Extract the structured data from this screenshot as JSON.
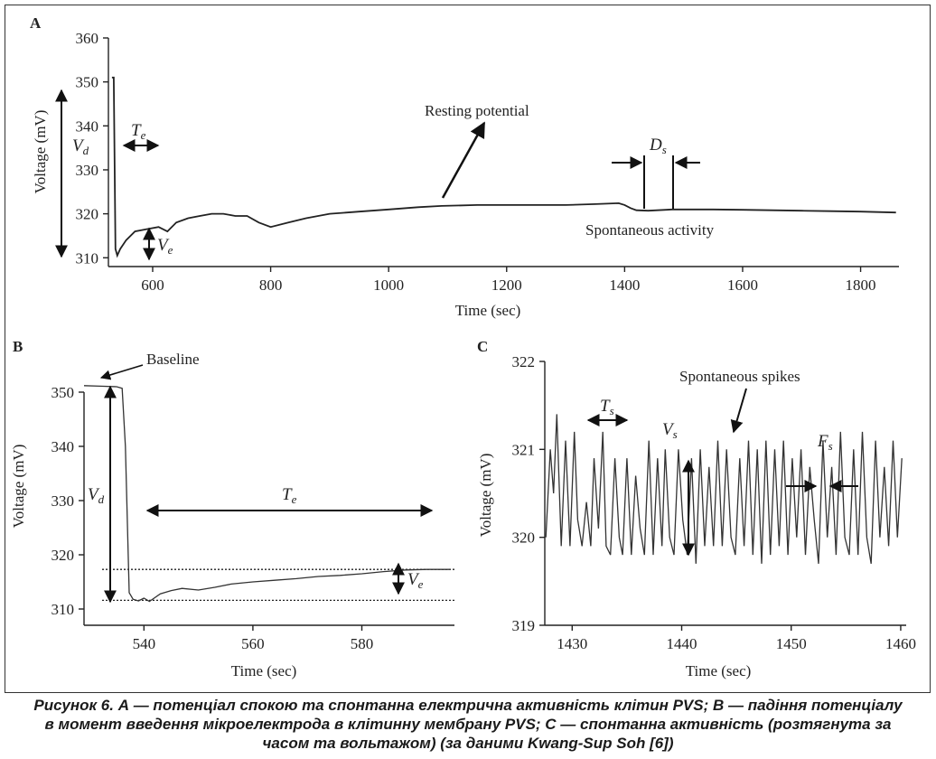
{
  "chart_data": [
    {
      "panel": "A",
      "type": "line",
      "xlabel": "Time (sec)",
      "ylabel": "Voltage (mV)",
      "xlim": [
        525,
        1865
      ],
      "ylim": [
        308,
        360
      ],
      "xticks": [
        600,
        800,
        1000,
        1200,
        1400,
        1600,
        1800
      ],
      "yticks": [
        310,
        320,
        330,
        340,
        350,
        360
      ],
      "series": [
        {
          "x": [
            531,
            534,
            537,
            540,
            545,
            555,
            570,
            590,
            610,
            625,
            640,
            660,
            680,
            700,
            720,
            740,
            760,
            780,
            800,
            830,
            860,
            900,
            950,
            1000,
            1050,
            1090,
            1150,
            1200,
            1250,
            1300,
            1350,
            1390,
            1400,
            1410,
            1420,
            1440,
            1470,
            1480,
            1500,
            1550,
            1600,
            1650,
            1700,
            1750,
            1800,
            1830,
            1860
          ],
          "y": [
            351,
            351,
            312,
            310.5,
            312,
            314,
            316,
            316.5,
            317,
            316,
            318,
            319,
            319.5,
            320,
            320,
            319.5,
            319.5,
            318,
            317,
            318,
            319,
            320,
            320.5,
            321,
            321.5,
            321.8,
            322,
            322,
            322,
            322,
            322.2,
            322.4,
            322,
            321.3,
            320.8,
            320.7,
            320.9,
            321,
            321,
            321,
            320.9,
            320.8,
            320.7,
            320.6,
            320.5,
            320.4,
            320.3
          ]
        }
      ],
      "annotations": {
        "resting": "Resting potential",
        "spontaneous": "Spontaneous activity",
        "te": "T",
        "te_sub": "e",
        "vd": "V",
        "vd_sub": "d",
        "ve": "V",
        "ve_sub": "e",
        "ds": "D",
        "ds_sub": "s"
      }
    },
    {
      "panel": "B",
      "type": "line",
      "xlabel": "Time (sec)",
      "ylabel": "Voltage (mV)",
      "xlim": [
        529,
        597
      ],
      "ylim": [
        307,
        354
      ],
      "xticks": [
        540,
        560,
        580
      ],
      "yticks": [
        310,
        320,
        330,
        340,
        350
      ],
      "series": [
        {
          "x": [
            529,
            532,
            535,
            536,
            536.6,
            537.3,
            538,
            539,
            540,
            541,
            543,
            545,
            547,
            550,
            553,
            556,
            560,
            564,
            568,
            572,
            576,
            580,
            584,
            588,
            592,
            596
          ],
          "y": [
            351.2,
            351.1,
            351,
            350.7,
            340,
            313,
            311.8,
            311.5,
            312,
            311.4,
            312.8,
            313.4,
            313.8,
            313.5,
            314,
            314.6,
            315,
            315.3,
            315.6,
            316,
            316.2,
            316.5,
            316.9,
            317.2,
            317.3,
            317.3
          ]
        }
      ],
      "reference_lines": [
        317.3,
        311.6
      ],
      "annotations": {
        "baseline": "Baseline",
        "vd": "V",
        "vd_sub": "d",
        "te": "T",
        "te_sub": "e",
        "ve": "V",
        "ve_sub": "e"
      }
    },
    {
      "panel": "C",
      "type": "line",
      "xlabel": "Time (sec)",
      "ylabel": "Voltage (mV)",
      "xlim": [
        1427.5,
        1460.5
      ],
      "ylim": [
        319,
        322
      ],
      "xticks": [
        1430,
        1440,
        1450,
        1460
      ],
      "yticks": [
        319,
        320,
        321,
        322
      ],
      "series": [
        {
          "x": [
            1427.6,
            1428.0,
            1428.3,
            1428.6,
            1429.0,
            1429.4,
            1429.8,
            1430.2,
            1430.5,
            1430.9,
            1431.3,
            1431.7,
            1432.0,
            1432.4,
            1432.8,
            1433.1,
            1433.5,
            1433.9,
            1434.3,
            1434.6,
            1435.0,
            1435.4,
            1435.8,
            1436.2,
            1436.6,
            1437.0,
            1437.4,
            1437.8,
            1438.2,
            1438.5,
            1438.9,
            1439.3,
            1439.7,
            1440.1,
            1440.5,
            1440.9,
            1441.3,
            1441.7,
            1442.1,
            1442.5,
            1442.9,
            1443.3,
            1443.7,
            1444.1,
            1444.5,
            1444.9,
            1445.3,
            1445.7,
            1446.1,
            1446.5,
            1446.9,
            1447.3,
            1447.7,
            1448.1,
            1448.5,
            1448.9,
            1449.3,
            1449.7,
            1450.1,
            1450.5,
            1450.9,
            1451.3,
            1451.7,
            1452.1,
            1452.5,
            1452.9,
            1453.3,
            1453.7,
            1454.1,
            1454.5,
            1454.9,
            1455.3,
            1455.7,
            1456.1,
            1456.5,
            1456.9,
            1457.3,
            1457.7,
            1458.1,
            1458.5,
            1458.9,
            1459.3,
            1459.7,
            1460.1
          ],
          "y": [
            320.0,
            321.0,
            320.5,
            321.4,
            319.9,
            321.1,
            319.9,
            321.2,
            320.2,
            319.9,
            320.4,
            319.9,
            320.9,
            320.1,
            321.2,
            319.9,
            319.8,
            320.9,
            320.0,
            319.8,
            320.9,
            319.8,
            320.7,
            320.1,
            319.8,
            321.1,
            319.8,
            320.9,
            319.9,
            321.0,
            320.0,
            319.8,
            321.0,
            320.2,
            319.8,
            320.9,
            319.7,
            321.0,
            319.9,
            320.8,
            319.9,
            321.1,
            319.9,
            321.0,
            320.0,
            319.8,
            320.9,
            319.9,
            321.1,
            319.8,
            321.0,
            319.7,
            321.1,
            319.8,
            321.0,
            319.9,
            321.1,
            319.8,
            320.9,
            320.0,
            321.0,
            319.8,
            320.8,
            320.2,
            319.7,
            321.1,
            320.0,
            320.8,
            319.8,
            321.2,
            320.0,
            319.8,
            321.0,
            319.8,
            321.2,
            320.0,
            319.7,
            321.1,
            320.0,
            320.8,
            319.9,
            321.1,
            320.0,
            320.9
          ]
        }
      ],
      "annotations": {
        "spikes": "Spontaneous spikes",
        "ts": "T",
        "ts_sub": "s",
        "vs": "V",
        "vs_sub": "s",
        "fs": "F",
        "fs_sub": "s"
      }
    }
  ],
  "panel_labels": [
    "A",
    "B",
    "C"
  ],
  "caption": {
    "line1": "Рисунок 6. А — потенціал спокою та спонтанна електрична активність клітин PVS; В — падіння потенціалу",
    "line2": "в момент введення мікроелектрода в клітинну мембрану PVS; С — спонтанна активність (розтягнута за",
    "line3": "часом та вольтажом) (за даними Kwang-Sup Soh [6])"
  }
}
